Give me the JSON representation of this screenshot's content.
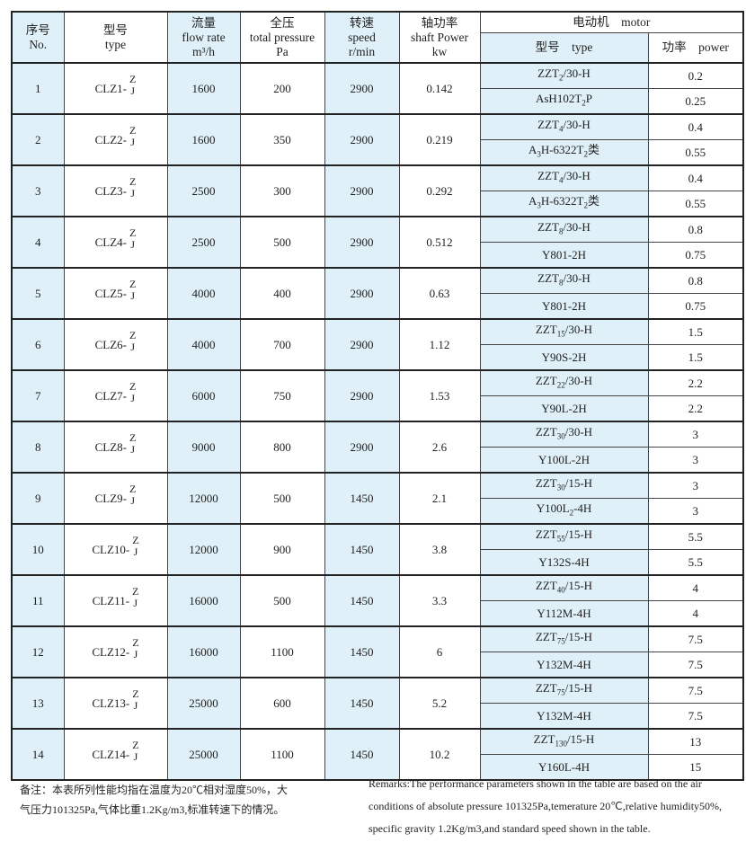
{
  "header": {
    "no": [
      "序号",
      "No."
    ],
    "type": [
      "型号",
      "type"
    ],
    "flow": [
      "流量",
      "flow rate",
      "m³/h"
    ],
    "pressure": [
      "全压",
      "total pressure",
      "Pa"
    ],
    "speed": [
      "转速",
      "speed",
      "r/min"
    ],
    "shaft": [
      "轴功率",
      "shaft Power",
      "kw"
    ],
    "motor": "电动机　motor",
    "motor_type": "型号　type",
    "motor_power": "功率　power"
  },
  "colors": {
    "highlight": "#dff0f8",
    "border": "#222222"
  },
  "rows": [
    {
      "no": "1",
      "model": "CLZ1-",
      "flow": "1600",
      "pressure": "200",
      "speed": "2900",
      "shaft": "0.142",
      "motors": [
        {
          "type": [
            [
              "ZZT",
              ""
            ],
            [
              "2",
              "s"
            ],
            [
              "/30-H",
              ""
            ]
          ],
          "power": "0.2"
        },
        {
          "type": [
            [
              "AsH102T",
              ""
            ],
            [
              "2",
              "s"
            ],
            [
              "P",
              ""
            ]
          ],
          "power": "0.25"
        }
      ]
    },
    {
      "no": "2",
      "model": "CLZ2-",
      "flow": "1600",
      "pressure": "350",
      "speed": "2900",
      "shaft": "0.219",
      "motors": [
        {
          "type": [
            [
              "ZZT",
              ""
            ],
            [
              "4",
              "s"
            ],
            [
              "/30-H",
              ""
            ]
          ],
          "power": "0.4"
        },
        {
          "type": [
            [
              "A",
              ""
            ],
            [
              "3",
              "s"
            ],
            [
              "H-6322T",
              ""
            ],
            [
              "2",
              "s"
            ],
            [
              "类",
              ""
            ]
          ],
          "power": "0.55"
        }
      ]
    },
    {
      "no": "3",
      "model": "CLZ3-",
      "flow": "2500",
      "pressure": "300",
      "speed": "2900",
      "shaft": "0.292",
      "motors": [
        {
          "type": [
            [
              "ZZT",
              ""
            ],
            [
              "4",
              "s"
            ],
            [
              "/30-H",
              ""
            ]
          ],
          "power": "0.4"
        },
        {
          "type": [
            [
              "A",
              ""
            ],
            [
              "3",
              "s"
            ],
            [
              "H-6322T",
              ""
            ],
            [
              "2",
              "s"
            ],
            [
              "类",
              ""
            ]
          ],
          "power": "0.55"
        }
      ]
    },
    {
      "no": "4",
      "model": "CLZ4-",
      "flow": "2500",
      "pressure": "500",
      "speed": "2900",
      "shaft": "0.512",
      "motors": [
        {
          "type": [
            [
              "ZZT",
              ""
            ],
            [
              "8",
              "s"
            ],
            [
              "/30-H",
              ""
            ]
          ],
          "power": "0.8"
        },
        {
          "type": [
            [
              "Y801-2H",
              ""
            ]
          ],
          "power": "0.75"
        }
      ]
    },
    {
      "no": "5",
      "model": "CLZ5-",
      "flow": "4000",
      "pressure": "400",
      "speed": "2900",
      "shaft": "0.63",
      "motors": [
        {
          "type": [
            [
              "ZZT",
              ""
            ],
            [
              "8",
              "s"
            ],
            [
              "/30-H",
              ""
            ]
          ],
          "power": "0.8"
        },
        {
          "type": [
            [
              "Y801-2H",
              ""
            ]
          ],
          "power": "0.75"
        }
      ]
    },
    {
      "no": "6",
      "model": "CLZ6-",
      "flow": "4000",
      "pressure": "700",
      "speed": "2900",
      "shaft": "1.12",
      "motors": [
        {
          "type": [
            [
              "ZZT",
              ""
            ],
            [
              "15",
              "s"
            ],
            [
              "/30-H",
              ""
            ]
          ],
          "power": "1.5"
        },
        {
          "type": [
            [
              "Y90S-2H",
              ""
            ]
          ],
          "power": "1.5"
        }
      ]
    },
    {
      "no": "7",
      "model": "CLZ7-",
      "flow": "6000",
      "pressure": "750",
      "speed": "2900",
      "shaft": "1.53",
      "motors": [
        {
          "type": [
            [
              "ZZT",
              ""
            ],
            [
              "22",
              "s"
            ],
            [
              "/30-H",
              ""
            ]
          ],
          "power": "2.2"
        },
        {
          "type": [
            [
              "Y90L-2H",
              ""
            ]
          ],
          "power": "2.2"
        }
      ]
    },
    {
      "no": "8",
      "model": "CLZ8-",
      "flow": "9000",
      "pressure": "800",
      "speed": "2900",
      "shaft": "2.6",
      "motors": [
        {
          "type": [
            [
              "ZZT",
              ""
            ],
            [
              "30",
              "s"
            ],
            [
              "/30-H",
              ""
            ]
          ],
          "power": "3"
        },
        {
          "type": [
            [
              "Y100L-2H",
              ""
            ]
          ],
          "power": "3"
        }
      ]
    },
    {
      "no": "9",
      "model": "CLZ9-",
      "flow": "12000",
      "pressure": "500",
      "speed": "1450",
      "shaft": "2.1",
      "motors": [
        {
          "type": [
            [
              "ZZT",
              ""
            ],
            [
              "30",
              "s"
            ],
            [
              "/15-H",
              ""
            ]
          ],
          "power": "3"
        },
        {
          "type": [
            [
              "Y100L",
              ""
            ],
            [
              "2",
              "s"
            ],
            [
              "-4H",
              ""
            ]
          ],
          "power": "3"
        }
      ]
    },
    {
      "no": "10",
      "model": "CLZ10-",
      "flow": "12000",
      "pressure": "900",
      "speed": "1450",
      "shaft": "3.8",
      "motors": [
        {
          "type": [
            [
              "ZZT",
              ""
            ],
            [
              "55",
              "s"
            ],
            [
              "/15-H",
              ""
            ]
          ],
          "power": "5.5"
        },
        {
          "type": [
            [
              "Y132S-4H",
              ""
            ]
          ],
          "power": "5.5"
        }
      ]
    },
    {
      "no": "11",
      "model": "CLZ11-",
      "flow": "16000",
      "pressure": "500",
      "speed": "1450",
      "shaft": "3.3",
      "motors": [
        {
          "type": [
            [
              "ZZT",
              ""
            ],
            [
              "40",
              "s"
            ],
            [
              "/15-H",
              ""
            ]
          ],
          "power": "4"
        },
        {
          "type": [
            [
              "Y112M-4H",
              ""
            ]
          ],
          "power": "4"
        }
      ]
    },
    {
      "no": "12",
      "model": "CLZ12-",
      "flow": "16000",
      "pressure": "1100",
      "speed": "1450",
      "shaft": "6",
      "motors": [
        {
          "type": [
            [
              "ZZT",
              ""
            ],
            [
              "75",
              "s"
            ],
            [
              "/15-H",
              ""
            ]
          ],
          "power": "7.5"
        },
        {
          "type": [
            [
              "Y132M-4H",
              ""
            ]
          ],
          "power": "7.5"
        }
      ]
    },
    {
      "no": "13",
      "model": "CLZ13-",
      "flow": "25000",
      "pressure": "600",
      "speed": "1450",
      "shaft": "5.2",
      "motors": [
        {
          "type": [
            [
              "ZZT",
              ""
            ],
            [
              "75",
              "s"
            ],
            [
              "/15-H",
              ""
            ]
          ],
          "power": "7.5"
        },
        {
          "type": [
            [
              "Y132M-4H",
              ""
            ]
          ],
          "power": "7.5"
        }
      ]
    },
    {
      "no": "14",
      "model": "CLZ14-",
      "flow": "25000",
      "pressure": "1100",
      "speed": "1450",
      "shaft": "10.2",
      "motors": [
        {
          "type": [
            [
              "ZZT",
              ""
            ],
            [
              "130",
              "s"
            ],
            [
              "/15-H",
              ""
            ]
          ],
          "power": "13"
        },
        {
          "type": [
            [
              "Y160L-4H",
              ""
            ]
          ],
          "power": "15"
        }
      ]
    }
  ],
  "model_suffix": [
    "Z",
    "J"
  ],
  "notes": {
    "cn": "备注：本表所列性能均指在温度为20℃相对湿度50%，大气压力101325Pa,气体比重1.2Kg/m3,标准转速下的情况。",
    "en": "Remarks:The performance parameters shown in the table are based on the air conditions of absolute pressure 101325Pa,temerature 20℃,relative humidity50%, specific gravity 1.2Kg/m3,and standard speed shown in the table."
  }
}
